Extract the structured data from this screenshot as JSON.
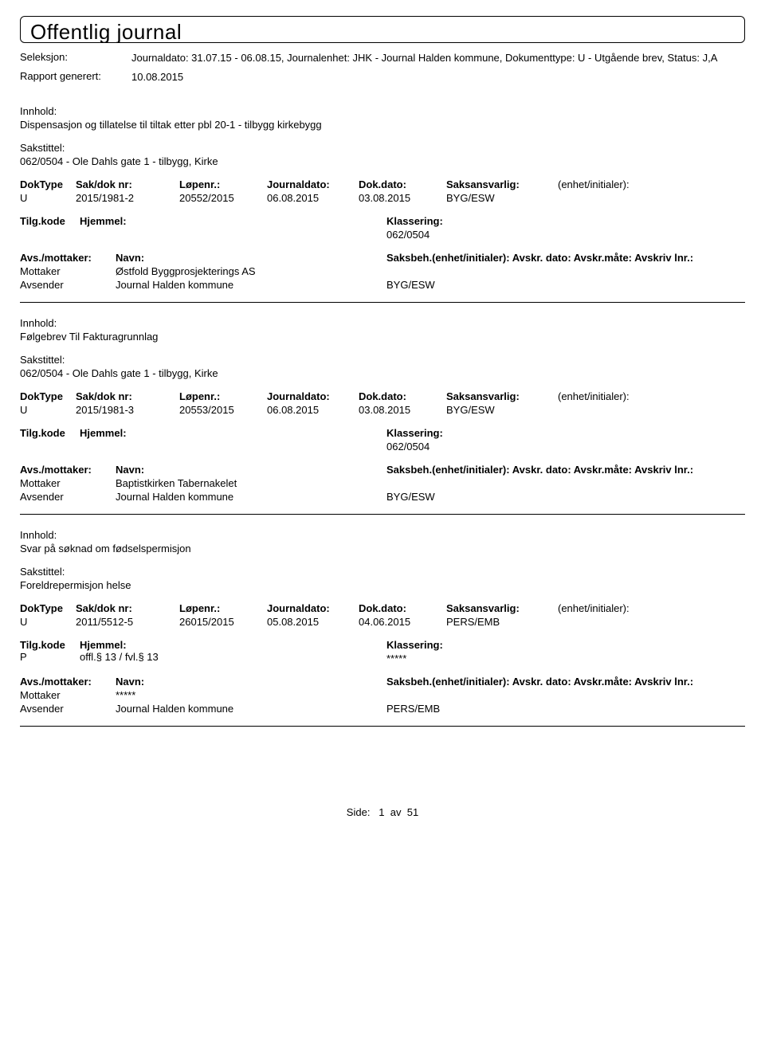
{
  "page_title": "Offentlig journal",
  "header": {
    "seleksjon_label": "Seleksjon:",
    "seleksjon_value": "Journaldato: 31.07.15 - 06.08.15, Journalenhet: JHK - Journal Halden kommune, Dokumenttype: U - Utgående brev, Status: J,A",
    "rapport_label": "Rapport generert:",
    "rapport_value": "10.08.2015"
  },
  "labels": {
    "innhold": "Innhold:",
    "sakstittel": "Sakstittel:",
    "doktype": "DokType",
    "saknr": "Sak/dok nr:",
    "lopenr": "Løpenr.:",
    "journaldato": "Journaldato:",
    "dokdato": "Dok.dato:",
    "saksansvarlig": "Saksansvarlig:",
    "enhet_init": "(enhet/initialer):",
    "tilgkode": "Tilg.kode",
    "hjemmel": "Hjemmel:",
    "klassering": "Klassering:",
    "avs_mottaker": "Avs./mottaker:",
    "navn": "Navn:",
    "saksbeh": "Saksbeh.(enhet/initialer):",
    "avskr": "Avskr. dato: Avskr.måte: Avskriv lnr.:",
    "mottaker": "Mottaker",
    "avsender": "Avsender"
  },
  "entries": [
    {
      "innhold": "Dispensasjon og tillatelse til tiltak etter pbl 20-1 - tilbygg kirkebygg",
      "sakstittel": "062/0504 - Ole Dahls gate 1 - tilbygg, Kirke",
      "doktype": "U",
      "saknr": "2015/1981-2",
      "lopenr": "20552/2015",
      "jdato": "06.08.2015",
      "ddato": "03.08.2015",
      "saksansv": "BYG/ESW",
      "tilgkode": "",
      "hjemmel": "",
      "klassering": "062/0504",
      "mottaker_navn": "Østfold Byggprosjekterings AS",
      "avsender_navn": "Journal Halden kommune",
      "avsender_extra": "BYG/ESW"
    },
    {
      "innhold": "Følgebrev Til Fakturagrunnlag",
      "sakstittel": "062/0504 - Ole Dahls gate 1 - tilbygg, Kirke",
      "doktype": "U",
      "saknr": "2015/1981-3",
      "lopenr": "20553/2015",
      "jdato": "06.08.2015",
      "ddato": "03.08.2015",
      "saksansv": "BYG/ESW",
      "tilgkode": "",
      "hjemmel": "",
      "klassering": "062/0504",
      "mottaker_navn": "Baptistkirken Tabernakelet",
      "avsender_navn": "Journal Halden kommune",
      "avsender_extra": "BYG/ESW"
    },
    {
      "innhold": "Svar på søknad om fødselspermisjon",
      "sakstittel": "Foreldrepermisjon helse",
      "doktype": "U",
      "saknr": "2011/5512-5",
      "lopenr": "26015/2015",
      "jdato": "05.08.2015",
      "ddato": "04.06.2015",
      "saksansv": "PERS/EMB",
      "tilgkode": "P",
      "hjemmel": "offl.§ 13 / fvl.§ 13",
      "klassering": "*****",
      "mottaker_navn": "*****",
      "avsender_navn": "Journal Halden kommune",
      "avsender_extra": "PERS/EMB"
    }
  ],
  "footer": {
    "side_label": "Side:",
    "page_current": "1",
    "page_sep": "av",
    "page_total": "51"
  }
}
